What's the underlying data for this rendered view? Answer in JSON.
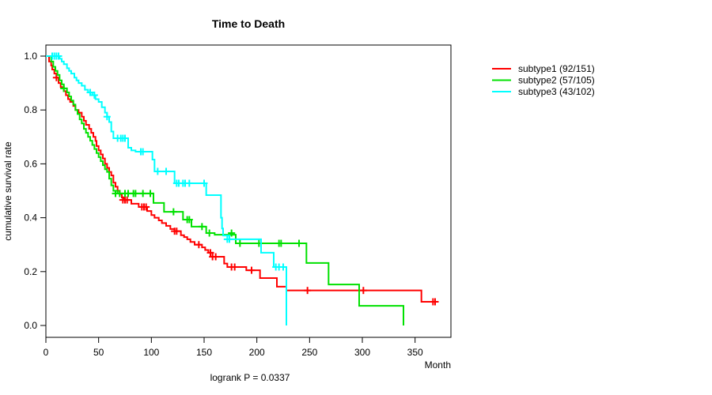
{
  "window": {
    "background": "#ffffff"
  },
  "chart_data": {
    "type": "line",
    "subtype": "kaplan-meier-step-curves",
    "title": "Time to Death",
    "xlabel": "Month",
    "ylabel": "cumulative survival rate",
    "annotation": "logrank P = 0.0337",
    "xlim": [
      0,
      384
    ],
    "ylim": [
      0,
      1
    ],
    "x_ticks": [
      0,
      50,
      100,
      150,
      200,
      250,
      300,
      350
    ],
    "y_ticks": [
      "0.0",
      "0.2",
      "0.4",
      "0.6",
      "0.8",
      "1.0"
    ],
    "grid": false,
    "legend_position": "right-outside",
    "series": [
      {
        "name": "subtype1 (92/151)",
        "color": "#ff0000",
        "steps": [
          [
            0,
            1.0
          ],
          [
            3,
            0.98
          ],
          [
            5,
            0.965
          ],
          [
            6,
            0.95
          ],
          [
            8,
            0.935
          ],
          [
            10,
            0.92
          ],
          [
            12,
            0.9
          ],
          [
            14,
            0.885
          ],
          [
            17,
            0.87
          ],
          [
            19,
            0.855
          ],
          [
            21,
            0.84
          ],
          [
            23,
            0.83
          ],
          [
            26,
            0.815
          ],
          [
            28,
            0.8
          ],
          [
            31,
            0.79
          ],
          [
            34,
            0.775
          ],
          [
            36,
            0.76
          ],
          [
            38,
            0.745
          ],
          [
            41,
            0.73
          ],
          [
            43,
            0.715
          ],
          [
            45,
            0.7
          ],
          [
            47,
            0.685
          ],
          [
            48,
            0.666
          ],
          [
            50,
            0.65
          ],
          [
            52,
            0.635
          ],
          [
            54,
            0.62
          ],
          [
            56,
            0.6
          ],
          [
            58,
            0.585
          ],
          [
            60,
            0.57
          ],
          [
            62,
            0.557
          ],
          [
            64,
            0.53
          ],
          [
            66,
            0.515
          ],
          [
            68,
            0.5
          ],
          [
            70,
            0.488
          ],
          [
            72,
            0.475
          ],
          [
            74,
            0.466
          ],
          [
            81,
            0.452
          ],
          [
            88,
            0.44
          ],
          [
            96,
            0.425
          ],
          [
            100,
            0.41
          ],
          [
            103,
            0.4
          ],
          [
            107,
            0.39
          ],
          [
            110,
            0.38
          ],
          [
            114,
            0.37
          ],
          [
            118,
            0.358
          ],
          [
            122,
            0.35
          ],
          [
            128,
            0.335
          ],
          [
            131,
            0.328
          ],
          [
            134,
            0.32
          ],
          [
            137,
            0.31
          ],
          [
            141,
            0.3
          ],
          [
            148,
            0.29
          ],
          [
            151,
            0.28
          ],
          [
            154,
            0.27
          ],
          [
            158,
            0.255
          ],
          [
            169,
            0.23
          ],
          [
            172,
            0.217
          ],
          [
            190,
            0.205
          ],
          [
            203,
            0.176
          ],
          [
            219,
            0.144
          ],
          [
            228,
            0.13
          ],
          [
            356,
            0.088
          ],
          [
            371,
            0.088
          ]
        ],
        "censors": [
          [
            10,
            0.92
          ],
          [
            73,
            0.466
          ],
          [
            75,
            0.466
          ],
          [
            77,
            0.466
          ],
          [
            91,
            0.44
          ],
          [
            93,
            0.44
          ],
          [
            95,
            0.44
          ],
          [
            122,
            0.35
          ],
          [
            124,
            0.35
          ],
          [
            145,
            0.3
          ],
          [
            156,
            0.27
          ],
          [
            158,
            0.255
          ],
          [
            161,
            0.255
          ],
          [
            176,
            0.217
          ],
          [
            179,
            0.217
          ],
          [
            195,
            0.205
          ],
          [
            248,
            0.13
          ],
          [
            301,
            0.13
          ],
          [
            367,
            0.088
          ],
          [
            369,
            0.088
          ]
        ]
      },
      {
        "name": "subtype2 (57/105)",
        "color": "#00e100",
        "steps": [
          [
            0,
            1.0
          ],
          [
            5,
            0.98
          ],
          [
            7,
            0.96
          ],
          [
            9,
            0.945
          ],
          [
            11,
            0.93
          ],
          [
            13,
            0.91
          ],
          [
            15,
            0.895
          ],
          [
            17,
            0.88
          ],
          [
            20,
            0.865
          ],
          [
            22,
            0.85
          ],
          [
            24,
            0.835
          ],
          [
            26,
            0.82
          ],
          [
            28,
            0.8
          ],
          [
            30,
            0.785
          ],
          [
            32,
            0.765
          ],
          [
            34,
            0.75
          ],
          [
            36,
            0.73
          ],
          [
            38,
            0.715
          ],
          [
            40,
            0.7
          ],
          [
            42,
            0.686
          ],
          [
            44,
            0.67
          ],
          [
            46,
            0.655
          ],
          [
            48,
            0.64
          ],
          [
            50,
            0.625
          ],
          [
            52,
            0.61
          ],
          [
            54,
            0.595
          ],
          [
            56,
            0.58
          ],
          [
            58,
            0.57
          ],
          [
            60,
            0.545
          ],
          [
            62,
            0.52
          ],
          [
            64,
            0.5
          ],
          [
            68,
            0.49
          ],
          [
            102,
            0.455
          ],
          [
            112,
            0.422
          ],
          [
            130,
            0.393
          ],
          [
            138,
            0.367
          ],
          [
            152,
            0.343
          ],
          [
            160,
            0.337
          ],
          [
            180,
            0.305
          ],
          [
            247,
            0.232
          ],
          [
            268,
            0.152
          ],
          [
            297,
            0.073
          ],
          [
            339,
            0.0
          ]
        ],
        "censors": [
          [
            17,
            0.88
          ],
          [
            66,
            0.49
          ],
          [
            70,
            0.49
          ],
          [
            75,
            0.49
          ],
          [
            78,
            0.49
          ],
          [
            83,
            0.49
          ],
          [
            85,
            0.49
          ],
          [
            92,
            0.49
          ],
          [
            99,
            0.49
          ],
          [
            121,
            0.422
          ],
          [
            134,
            0.393
          ],
          [
            136,
            0.393
          ],
          [
            148,
            0.367
          ],
          [
            155,
            0.343
          ],
          [
            176,
            0.343
          ],
          [
            184,
            0.305
          ],
          [
            202,
            0.305
          ],
          [
            221,
            0.305
          ],
          [
            223,
            0.305
          ],
          [
            240,
            0.305
          ]
        ]
      },
      {
        "name": "subtype3 (43/102)",
        "color": "#00ffff",
        "steps": [
          [
            0,
            1.0
          ],
          [
            13,
            0.99
          ],
          [
            15,
            0.98
          ],
          [
            17,
            0.97
          ],
          [
            20,
            0.955
          ],
          [
            22,
            0.945
          ],
          [
            24,
            0.935
          ],
          [
            27,
            0.92
          ],
          [
            29,
            0.91
          ],
          [
            31,
            0.9
          ],
          [
            34,
            0.89
          ],
          [
            37,
            0.875
          ],
          [
            40,
            0.865
          ],
          [
            44,
            0.855
          ],
          [
            47,
            0.84
          ],
          [
            50,
            0.83
          ],
          [
            53,
            0.81
          ],
          [
            56,
            0.79
          ],
          [
            58,
            0.775
          ],
          [
            60,
            0.755
          ],
          [
            62,
            0.72
          ],
          [
            64,
            0.695
          ],
          [
            78,
            0.66
          ],
          [
            81,
            0.65
          ],
          [
            85,
            0.645
          ],
          [
            101,
            0.616
          ],
          [
            103,
            0.572
          ],
          [
            122,
            0.528
          ],
          [
            152,
            0.484
          ],
          [
            166,
            0.4
          ],
          [
            167,
            0.36
          ],
          [
            168,
            0.334
          ],
          [
            174,
            0.32
          ],
          [
            204,
            0.27
          ],
          [
            216,
            0.217
          ],
          [
            228,
            0.0
          ]
        ],
        "censors": [
          [
            6,
            1.0
          ],
          [
            8,
            1.0
          ],
          [
            10,
            1.0
          ],
          [
            12,
            1.0
          ],
          [
            42,
            0.865
          ],
          [
            46,
            0.855
          ],
          [
            58,
            0.775
          ],
          [
            68,
            0.695
          ],
          [
            71,
            0.695
          ],
          [
            73,
            0.695
          ],
          [
            75,
            0.695
          ],
          [
            90,
            0.645
          ],
          [
            92,
            0.645
          ],
          [
            106,
            0.572
          ],
          [
            114,
            0.572
          ],
          [
            124,
            0.528
          ],
          [
            126,
            0.528
          ],
          [
            130,
            0.528
          ],
          [
            132,
            0.528
          ],
          [
            136,
            0.528
          ],
          [
            150,
            0.528
          ],
          [
            172,
            0.32
          ],
          [
            174,
            0.32
          ],
          [
            218,
            0.217
          ],
          [
            221,
            0.217
          ],
          [
            225,
            0.217
          ]
        ]
      }
    ]
  }
}
